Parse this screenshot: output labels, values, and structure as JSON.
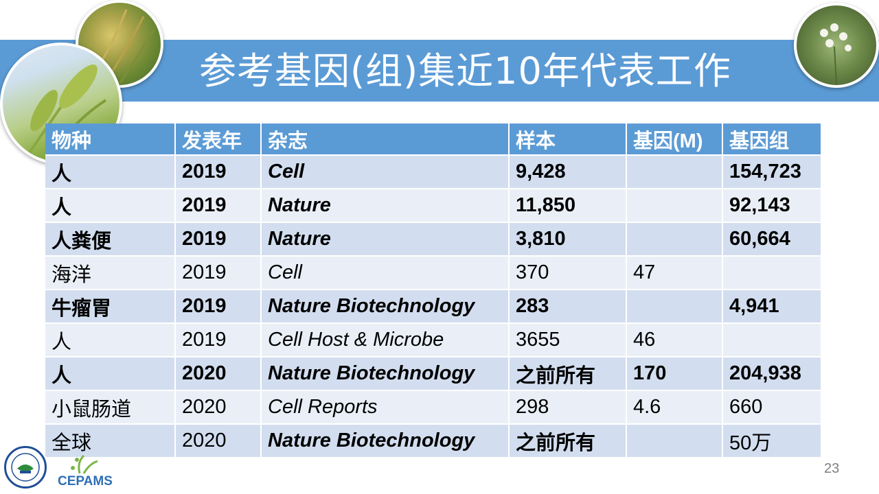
{
  "title": "参考基因(组)集近10年代表工作",
  "table": {
    "headers": [
      "物种",
      "发表年",
      "杂志",
      "样本",
      "基因(M)",
      "基因组"
    ],
    "rows": [
      {
        "species": "人",
        "year": "2019",
        "journal": "Cell",
        "samples": "9,428",
        "genes": "",
        "genomes": "154,723",
        "bold": true
      },
      {
        "species": "人",
        "year": "2019",
        "journal": "Nature",
        "samples": "11,850",
        "genes": "",
        "genomes": "92,143",
        "bold": true
      },
      {
        "species": "人粪便",
        "year": "2019",
        "journal": "Nature",
        "samples": "3,810",
        "genes": "",
        "genomes": "60,664",
        "bold": true
      },
      {
        "species": "海洋",
        "year": "2019",
        "journal": "Cell",
        "samples": "370",
        "genes": "47",
        "genomes": "",
        "bold": false
      },
      {
        "species": "牛瘤胃",
        "year": "2019",
        "journal": "Nature Biotechnology",
        "samples": "283",
        "genes": "",
        "genomes": "4,941",
        "bold": true
      },
      {
        "species": "人",
        "year": "2019",
        "journal": "Cell Host & Microbe",
        "samples": "3655",
        "genes": "46",
        "genomes": "",
        "bold": false
      },
      {
        "species": "人",
        "year": "2020",
        "journal": "Nature Biotechnology",
        "samples": "之前所有",
        "genes": "170",
        "genomes": "204,938",
        "bold": true
      },
      {
        "species": "小鼠肠道",
        "year": "2020",
        "journal": "Cell Reports",
        "samples": "298",
        "genes": "4.6",
        "genomes": "660",
        "bold": false
      },
      {
        "species": "全球",
        "year": "2020",
        "journal": "Nature Biotechnology",
        "samples": "之前所有",
        "genes": "",
        "genomes": "50万",
        "bold": false,
        "journal_bold": true,
        "samples_bold": true
      }
    ]
  },
  "page_number": "23",
  "logos": {
    "cepams": "CEPAMS"
  },
  "colors": {
    "accent": "#5b9bd5",
    "row_dark": "#d2deef",
    "row_light": "#eaeff7"
  }
}
